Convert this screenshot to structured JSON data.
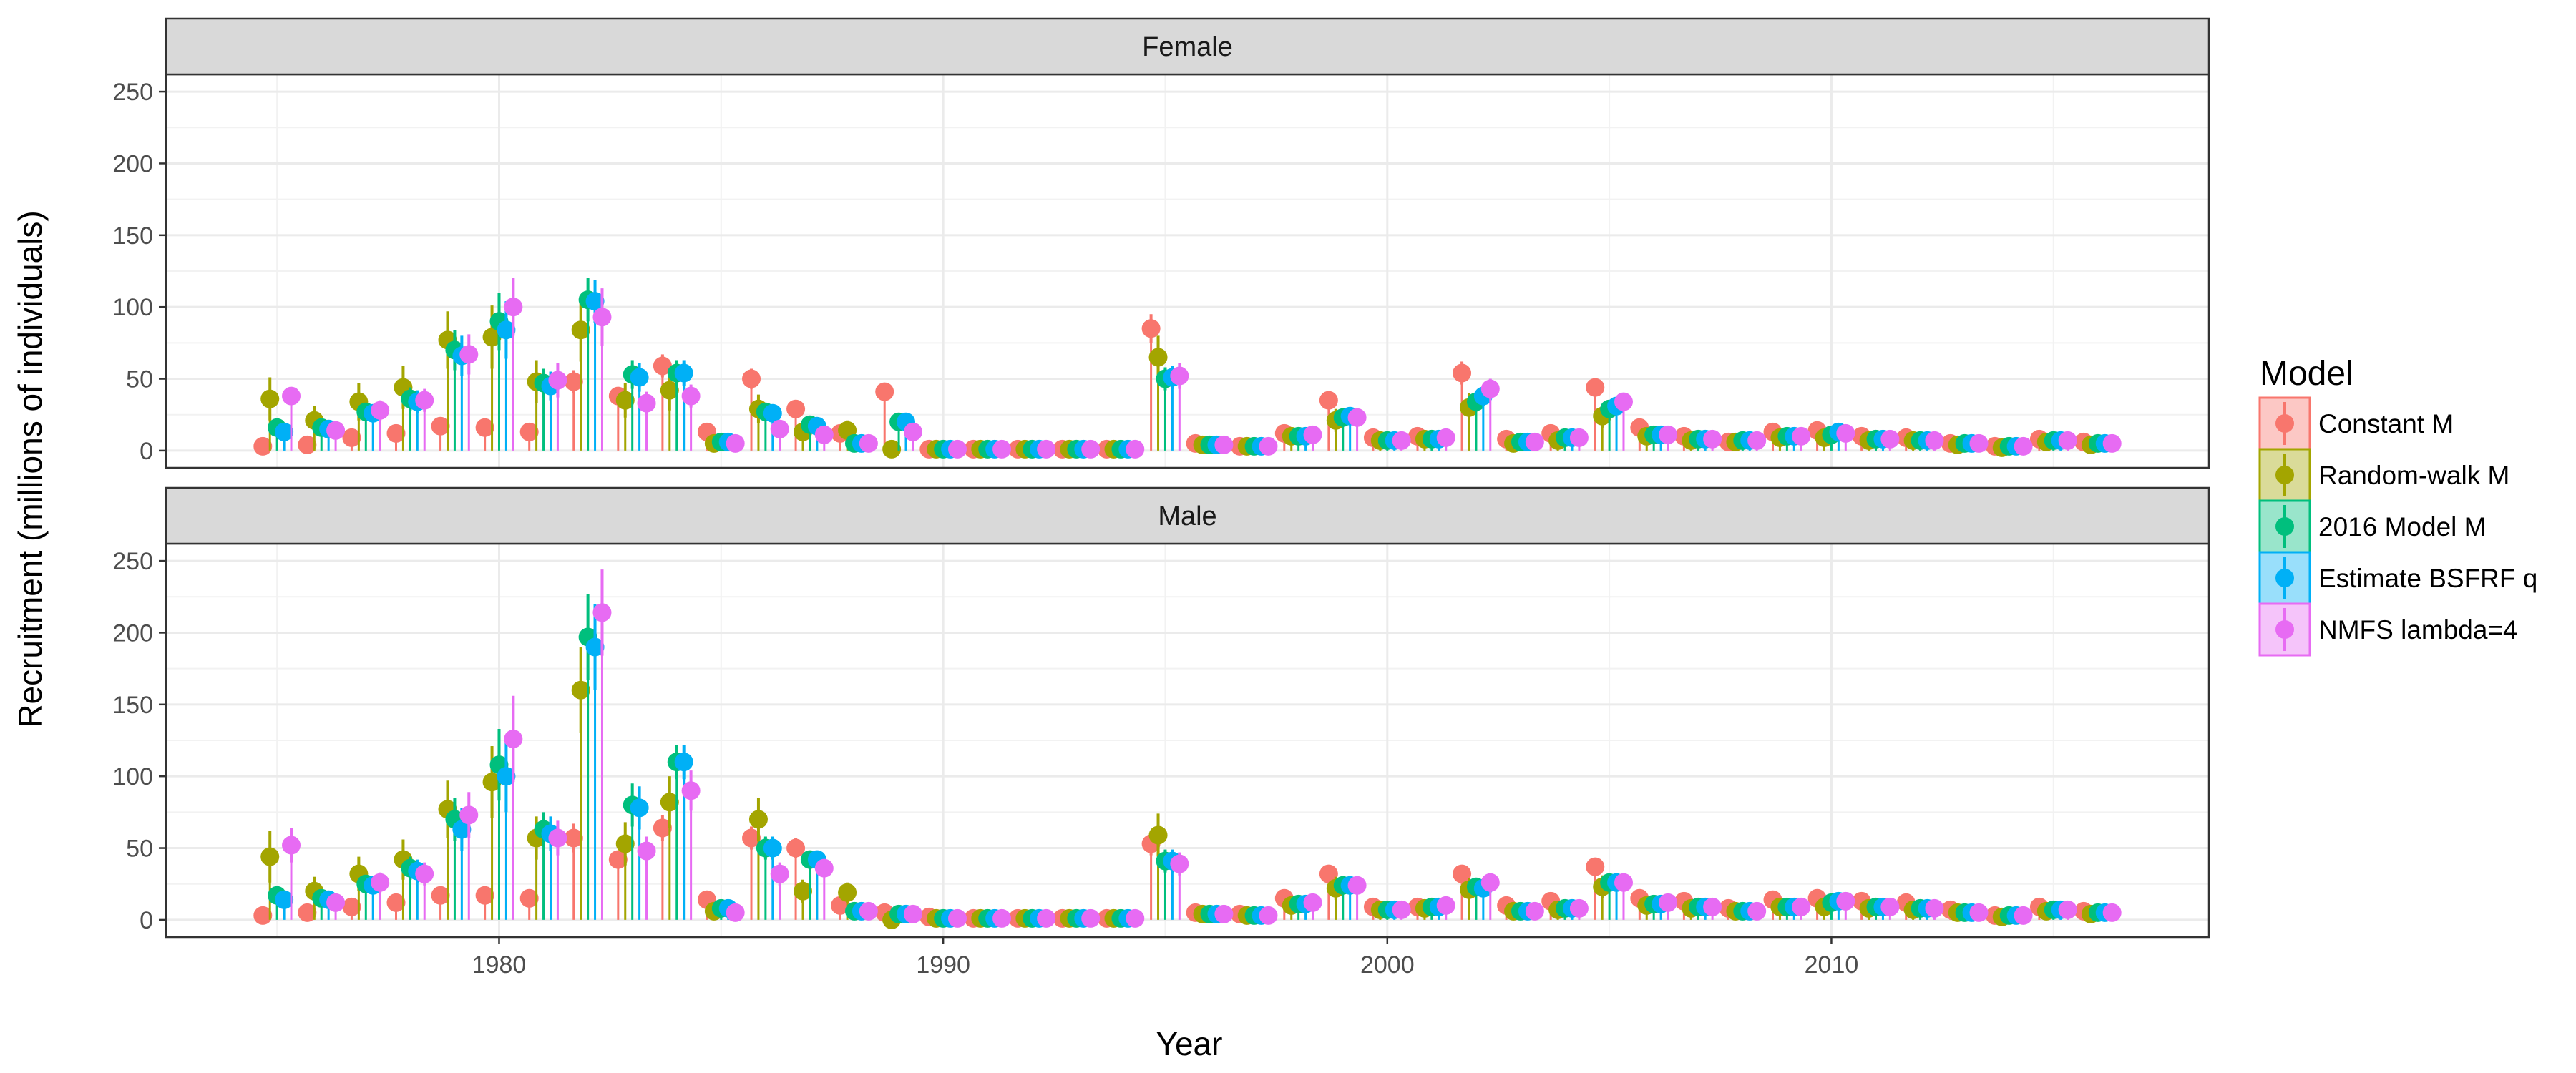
{
  "chart_data": {
    "type": "scatter",
    "title": "",
    "xlabel": "Year",
    "ylabel": "Recruitment (millions of individuals)",
    "xlim": [
      1972.5,
      2018.5
    ],
    "ylim": [
      -12,
      262
    ],
    "xticks": [
      1980,
      1990,
      2000,
      2010
    ],
    "yticks": [
      0,
      50,
      100,
      150,
      200,
      250
    ],
    "grid": true,
    "legend_title": "Model",
    "legend_position": "right",
    "years": [
      1975,
      1976,
      1977,
      1978,
      1979,
      1980,
      1981,
      1982,
      1983,
      1984,
      1985,
      1986,
      1987,
      1988,
      1989,
      1990,
      1991,
      1992,
      1993,
      1994,
      1995,
      1996,
      1997,
      1998,
      1999,
      2000,
      2001,
      2002,
      2003,
      2004,
      2005,
      2006,
      2007,
      2008,
      2009,
      2010,
      2011,
      2012,
      2013,
      2014,
      2015,
      2016
    ],
    "series_meta": [
      {
        "name": "Constant M",
        "color": "#F8766D",
        "offset": -0.32
      },
      {
        "name": "Random-walk M",
        "color": "#A3A500",
        "offset": -0.16
      },
      {
        "name": "2016 Model M",
        "color": "#00BF7D",
        "offset": 0.0
      },
      {
        "name": "Estimate BSFRF q",
        "color": "#00B0F6",
        "offset": 0.16
      },
      {
        "name": "NMFS lambda=4",
        "color": "#E76BF3",
        "offset": 0.32
      }
    ],
    "panels": [
      {
        "label": "Female",
        "series": [
          {
            "name": "Constant M",
            "values": [
              3,
              4,
              9,
              12,
              17,
              16,
              13,
              48,
              38,
              59,
              13,
              50,
              29,
              12,
              41,
              1,
              1,
              1,
              1,
              1,
              85,
              5,
              3,
              12,
              35,
              9,
              10,
              54,
              8,
              12,
              44,
              16,
              10,
              6,
              13,
              14,
              10,
              9,
              5,
              3,
              8,
              6
            ],
            "err": [
              1,
              1,
              2,
              3,
              4,
              4,
              3,
              8,
              6,
              8,
              2,
              7,
              4,
              2,
              6,
              0.5,
              0.5,
              0.5,
              0.5,
              0.5,
              10,
              1,
              1,
              2,
              5,
              2,
              2,
              8,
              2,
              2,
              6,
              3,
              2,
              1,
              2,
              2,
              2,
              2,
              1,
              1,
              1,
              1
            ]
          },
          {
            "name": "Random-walk M",
            "values": [
              36,
              21,
              34,
              44,
              77,
              79,
              48,
              84,
              35,
              42,
              5,
              29,
              13,
              14,
              1,
              1,
              1,
              1,
              1,
              1,
              65,
              4,
              3,
              10,
              21,
              7,
              8,
              30,
              5,
              7,
              24,
              10,
              7,
              6,
              9,
              9,
              7,
              7,
              4,
              2,
              6,
              4
            ],
            "err": [
              15,
              10,
              13,
              15,
              20,
              22,
              15,
              22,
              12,
              14,
              3,
              10,
              6,
              7,
              0.5,
              0.5,
              0.5,
              0.5,
              0.5,
              0.5,
              15,
              2,
              1,
              4,
              8,
              3,
              3,
              10,
              2,
              3,
              8,
              4,
              3,
              2,
              3,
              3,
              3,
              3,
              2,
              1,
              2,
              2
            ]
          },
          {
            "name": "2016 Model M",
            "values": [
              16,
              16,
              27,
              36,
              70,
              90,
              47,
              105,
              53,
              54,
              6,
              27,
              18,
              5,
              20,
              1,
              1,
              1,
              1,
              1,
              50,
              4,
              3,
              10,
              23,
              7,
              8,
              34,
              6,
              9,
              29,
              11,
              8,
              7,
              10,
              11,
              8,
              7,
              5,
              3,
              7,
              5
            ],
            "err": [
              4,
              4,
              6,
              8,
              14,
              20,
              10,
              15,
              10,
              9,
              2,
              6,
              4,
              2,
              5,
              0.5,
              0.5,
              0.5,
              0.5,
              0.5,
              8,
              1,
              1,
              2,
              4,
              2,
              2,
              6,
              2,
              2,
              5,
              2,
              2,
              2,
              2,
              2,
              2,
              2,
              1,
              1,
              2,
              1
            ]
          },
          {
            "name": "Estimate BSFRF q",
            "values": [
              13,
              15,
              26,
              34,
              66,
              84,
              45,
              104,
              51,
              54,
              6,
              26,
              17,
              5,
              20,
              1,
              1,
              1,
              1,
              1,
              51,
              4,
              3,
              10,
              24,
              7,
              8,
              38,
              6,
              9,
              31,
              11,
              8,
              7,
              10,
              13,
              8,
              7,
              5,
              3,
              7,
              5
            ],
            "err": [
              4,
              4,
              6,
              8,
              14,
              20,
              10,
              15,
              10,
              9,
              2,
              6,
              4,
              2,
              5,
              0.5,
              0.5,
              0.5,
              0.5,
              0.5,
              8,
              1,
              1,
              2,
              4,
              2,
              2,
              6,
              2,
              2,
              5,
              2,
              2,
              2,
              2,
              2,
              2,
              2,
              1,
              1,
              2,
              1
            ]
          },
          {
            "name": "NMFS lambda=4",
            "values": [
              38,
              14,
              28,
              35,
              67,
              100,
              49,
              93,
              33,
              38,
              5,
              15,
              11,
              5,
              13,
              1,
              1,
              1,
              1,
              1,
              52,
              4,
              3,
              11,
              23,
              7,
              9,
              43,
              6,
              9,
              34,
              11,
              8,
              7,
              10,
              12,
              8,
              7,
              5,
              3,
              7,
              5
            ],
            "err": [
              6,
              4,
              7,
              8,
              14,
              20,
              12,
              20,
              8,
              8,
              2,
              5,
              3,
              2,
              4,
              0.5,
              0.5,
              0.5,
              0.5,
              0.5,
              9,
              1,
              1,
              2,
              4,
              2,
              2,
              7,
              2,
              2,
              6,
              2,
              2,
              2,
              2,
              2,
              2,
              2,
              1,
              1,
              2,
              1
            ]
          }
        ]
      },
      {
        "label": "Male",
        "series": [
          {
            "name": "Constant M",
            "values": [
              3,
              5,
              9,
              12,
              17,
              17,
              15,
              57,
              42,
              64,
              14,
              57,
              50,
              10,
              5,
              2,
              1,
              1,
              1,
              1,
              53,
              5,
              4,
              15,
              32,
              9,
              9,
              32,
              10,
              13,
              37,
              15,
              13,
              8,
              14,
              15,
              13,
              12,
              7,
              3,
              9,
              6
            ],
            "err": [
              1,
              1,
              2,
              3,
              4,
              4,
              3,
              10,
              6,
              9,
              2,
              8,
              7,
              2,
              1,
              0.5,
              0.5,
              0.5,
              0.5,
              0.5,
              8,
              1,
              1,
              2,
              5,
              2,
              2,
              5,
              2,
              2,
              6,
              3,
              2,
              2,
              2,
              2,
              2,
              2,
              1,
              1,
              2,
              1
            ]
          },
          {
            "name": "Random-walk M",
            "values": [
              44,
              20,
              32,
              42,
              77,
              96,
              57,
              160,
              53,
              82,
              6,
              70,
              20,
              19,
              0,
              1,
              1,
              1,
              1,
              1,
              59,
              4,
              3,
              10,
              22,
              7,
              8,
              21,
              6,
              7,
              23,
              10,
              8,
              6,
              9,
              9,
              8,
              7,
              5,
              2,
              6,
              4
            ],
            "err": [
              18,
              10,
              12,
              14,
              20,
              25,
              15,
              30,
              15,
              18,
              3,
              15,
              8,
              7,
              0.5,
              0.5,
              0.5,
              0.5,
              0.5,
              0.5,
              15,
              2,
              1,
              4,
              8,
              3,
              3,
              8,
              2,
              3,
              8,
              4,
              3,
              2,
              3,
              3,
              3,
              3,
              2,
              1,
              2,
              2
            ]
          },
          {
            "name": "2016 Model M",
            "values": [
              17,
              15,
              25,
              36,
              70,
              108,
              63,
              197,
              80,
              110,
              8,
              50,
              42,
              6,
              4,
              1,
              1,
              1,
              1,
              1,
              41,
              4,
              3,
              11,
              24,
              7,
              9,
              23,
              6,
              8,
              26,
              11,
              9,
              6,
              9,
              12,
              9,
              8,
              5,
              3,
              7,
              5
            ],
            "err": [
              4,
              4,
              6,
              8,
              15,
              25,
              12,
              30,
              15,
              12,
              2,
              8,
              6,
              2,
              1,
              0.5,
              0.5,
              0.5,
              0.5,
              0.5,
              8,
              1,
              1,
              2,
              4,
              2,
              2,
              5,
              2,
              2,
              5,
              2,
              2,
              2,
              2,
              2,
              2,
              2,
              1,
              1,
              2,
              1
            ]
          },
          {
            "name": "Estimate BSFRF q",
            "values": [
              14,
              14,
              24,
              34,
              63,
              100,
              60,
              190,
              78,
              110,
              8,
              50,
              42,
              6,
              4,
              1,
              1,
              1,
              1,
              1,
              41,
              4,
              3,
              11,
              24,
              7,
              9,
              22,
              6,
              8,
              26,
              11,
              9,
              6,
              9,
              13,
              9,
              8,
              5,
              3,
              7,
              5
            ],
            "err": [
              4,
              4,
              6,
              8,
              15,
              25,
              12,
              30,
              15,
              12,
              2,
              8,
              6,
              2,
              1,
              0.5,
              0.5,
              0.5,
              0.5,
              0.5,
              8,
              1,
              1,
              2,
              4,
              2,
              2,
              5,
              2,
              2,
              5,
              2,
              2,
              2,
              2,
              2,
              2,
              2,
              1,
              1,
              2,
              1
            ]
          },
          {
            "name": "NMFS lambda=4",
            "values": [
              52,
              12,
              26,
              32,
              73,
              126,
              57,
              214,
              48,
              90,
              5,
              32,
              36,
              6,
              4,
              1,
              1,
              1,
              1,
              1,
              39,
              4,
              3,
              12,
              24,
              7,
              10,
              26,
              6,
              8,
              26,
              12,
              9,
              6,
              9,
              13,
              9,
              8,
              5,
              3,
              7,
              5
            ],
            "err": [
              12,
              4,
              7,
              8,
              16,
              30,
              12,
              30,
              10,
              14,
              2,
              8,
              6,
              2,
              1,
              0.5,
              0.5,
              0.5,
              0.5,
              0.5,
              8,
              1,
              1,
              2,
              4,
              2,
              2,
              5,
              2,
              2,
              5,
              2,
              2,
              2,
              2,
              2,
              2,
              2,
              1,
              1,
              2,
              1
            ]
          }
        ]
      }
    ]
  }
}
